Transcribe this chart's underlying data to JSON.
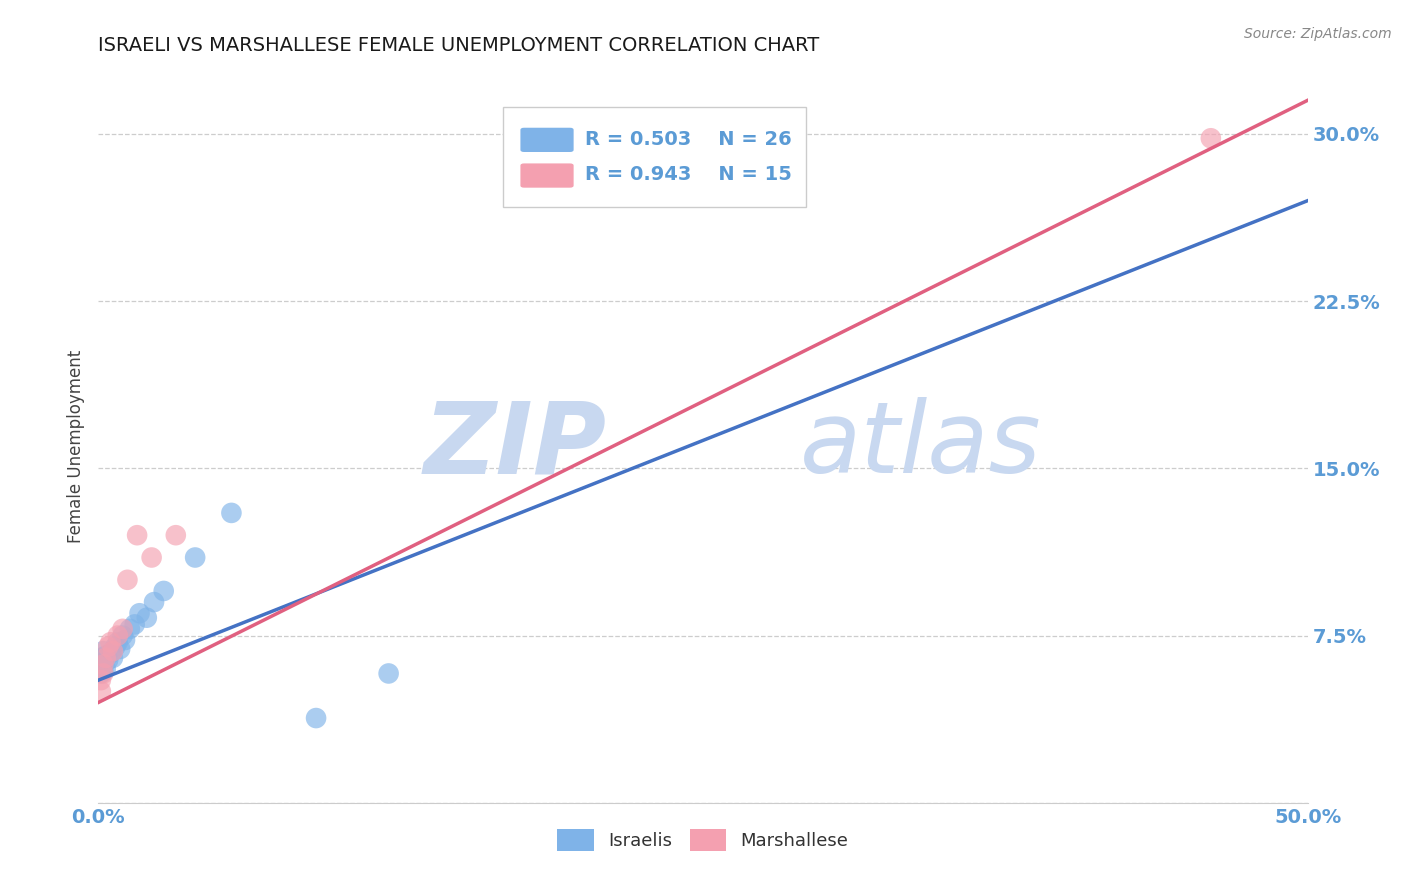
{
  "title": "ISRAELI VS MARSHALLESE FEMALE UNEMPLOYMENT CORRELATION CHART",
  "source": "Source: ZipAtlas.com",
  "ylabel": "Female Unemployment",
  "xlim": [
    0.0,
    0.5
  ],
  "ylim": [
    0.0,
    0.32
  ],
  "xticks": [
    0.0,
    0.05,
    0.1,
    0.15,
    0.2,
    0.25,
    0.3,
    0.35,
    0.4,
    0.45,
    0.5
  ],
  "yticks": [
    0.0,
    0.075,
    0.15,
    0.225,
    0.3
  ],
  "yticklabels": [
    "",
    "7.5%",
    "15.0%",
    "22.5%",
    "30.0%"
  ],
  "color_israeli": "#7fb3e8",
  "color_marshall": "#f4a0b0",
  "color_trendline_israeli": "#4472c4",
  "color_trendline_marshall": "#e06080",
  "color_axis_labels": "#5b9bd5",
  "color_title": "#1a1a1a",
  "watermark_color": "#c8d8f0",
  "grid_color": "#c8c8c8",
  "background_color": "#ffffff",
  "israeli_x": [
    0.001,
    0.001,
    0.001,
    0.002,
    0.002,
    0.002,
    0.003,
    0.003,
    0.004,
    0.005,
    0.006,
    0.007,
    0.008,
    0.009,
    0.01,
    0.011,
    0.013,
    0.015,
    0.017,
    0.02,
    0.023,
    0.027,
    0.04,
    0.055,
    0.09,
    0.12
  ],
  "israeli_y": [
    0.058,
    0.062,
    0.065,
    0.059,
    0.063,
    0.068,
    0.06,
    0.066,
    0.064,
    0.067,
    0.065,
    0.07,
    0.072,
    0.069,
    0.075,
    0.073,
    0.078,
    0.08,
    0.085,
    0.083,
    0.09,
    0.095,
    0.11,
    0.13,
    0.038,
    0.058
  ],
  "marshall_x": [
    0.001,
    0.001,
    0.002,
    0.002,
    0.003,
    0.004,
    0.005,
    0.006,
    0.008,
    0.01,
    0.012,
    0.016,
    0.022,
    0.032,
    0.46
  ],
  "marshall_y": [
    0.05,
    0.055,
    0.058,
    0.062,
    0.065,
    0.07,
    0.072,
    0.068,
    0.075,
    0.078,
    0.1,
    0.12,
    0.11,
    0.12,
    0.298
  ],
  "israeli_trend_x": [
    0.0,
    0.5
  ],
  "israeli_trend_y": [
    0.055,
    0.27
  ],
  "marshall_trend_x": [
    0.0,
    0.5
  ],
  "marshall_trend_y": [
    0.045,
    0.315
  ]
}
